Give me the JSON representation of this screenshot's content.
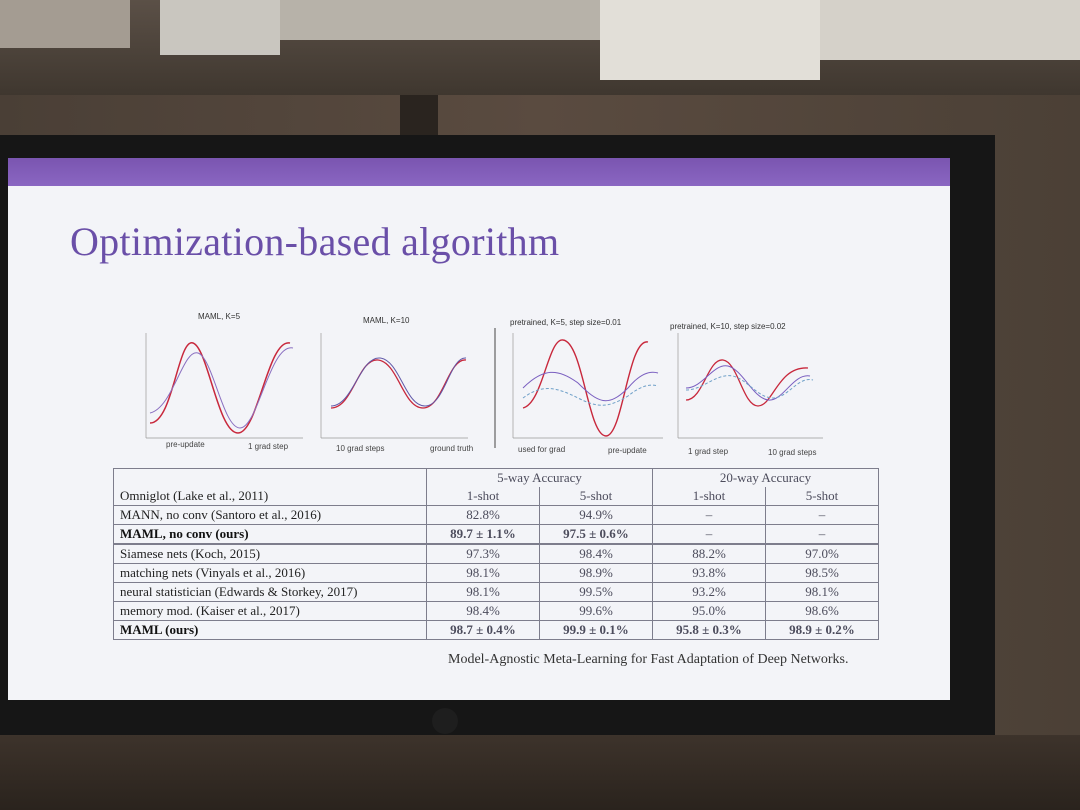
{
  "slide": {
    "title": "Optimization-based algorithm",
    "citation": "Model-Agnostic Meta-Learning for Fast Adaptation of Deep Networks."
  },
  "plots": [
    {
      "title": "MAML, K=5"
    },
    {
      "title": "MAML, K=10"
    },
    {
      "title": "pretrained, K=5, step size=0.01"
    },
    {
      "title": "pretrained, K=10, step size=0.02"
    }
  ],
  "legend": {
    "pre_update": "pre-update",
    "one_grad": "1 grad step",
    "ten_grad": "10 grad steps",
    "ground_truth": "ground truth",
    "used_for_grad": "used for grad",
    "pre_update_2": "pre-update",
    "one_grad_2": "1 grad step",
    "ten_grad_2": "10 grad steps"
  },
  "table": {
    "dataset": "Omniglot (Lake et al., 2011)",
    "group5": "5-way Accuracy",
    "group20": "20-way Accuracy",
    "shot1": "1-shot",
    "shot5": "5-shot",
    "shot1b": "1-shot",
    "shot5b": "5-shot",
    "rows": [
      {
        "name": "MANN, no conv (Santoro et al., 2016)",
        "v": [
          "82.8%",
          "94.9%",
          "–",
          "–"
        ]
      },
      {
        "name": "MAML, no conv (ours)",
        "v": [
          "89.7 ± 1.1%",
          "97.5 ± 0.6%",
          "–",
          "–"
        ]
      },
      {
        "name": "Siamese nets (Koch, 2015)",
        "v": [
          "97.3%",
          "98.4%",
          "88.2%",
          "97.0%"
        ]
      },
      {
        "name": "matching nets (Vinyals et al., 2016)",
        "v": [
          "98.1%",
          "98.9%",
          "93.8%",
          "98.5%"
        ]
      },
      {
        "name": "neural statistician (Edwards & Storkey, 2017)",
        "v": [
          "98.1%",
          "99.5%",
          "93.2%",
          "98.1%"
        ]
      },
      {
        "name": "memory mod. (Kaiser et al., 2017)",
        "v": [
          "98.4%",
          "99.6%",
          "95.0%",
          "98.6%"
        ]
      },
      {
        "name": "MAML (ours)",
        "v": [
          "98.7 ± 0.4%",
          "99.9 ± 0.1%",
          "95.8 ± 0.3%",
          "98.9 ± 0.2%"
        ]
      }
    ]
  },
  "colors": {
    "accent": "#6a4fa8",
    "ground_truth": "#c8283c",
    "pre_update": "#7a5fc0",
    "grad_steps": "#6fa0c8"
  }
}
